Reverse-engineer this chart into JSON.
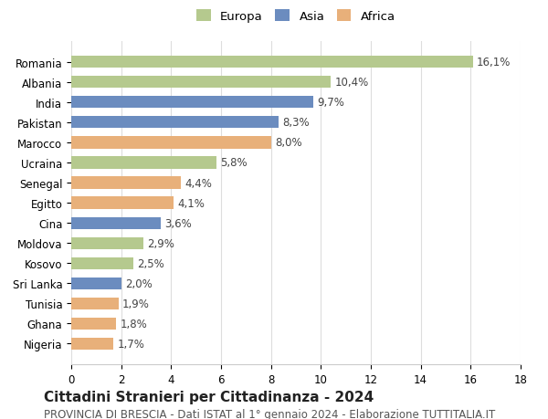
{
  "countries": [
    "Romania",
    "Albania",
    "India",
    "Pakistan",
    "Marocco",
    "Ucraina",
    "Senegal",
    "Egitto",
    "Cina",
    "Moldova",
    "Kosovo",
    "Sri Lanka",
    "Tunisia",
    "Ghana",
    "Nigeria"
  ],
  "values": [
    16.1,
    10.4,
    9.7,
    8.3,
    8.0,
    5.8,
    4.4,
    4.1,
    3.6,
    2.9,
    2.5,
    2.0,
    1.9,
    1.8,
    1.7
  ],
  "labels": [
    "16,1%",
    "10,4%",
    "9,7%",
    "8,3%",
    "8,0%",
    "5,8%",
    "4,4%",
    "4,1%",
    "3,6%",
    "2,9%",
    "2,5%",
    "2,0%",
    "1,9%",
    "1,8%",
    "1,7%"
  ],
  "continents": [
    "Europa",
    "Europa",
    "Asia",
    "Asia",
    "Africa",
    "Europa",
    "Africa",
    "Africa",
    "Asia",
    "Europa",
    "Europa",
    "Asia",
    "Africa",
    "Africa",
    "Africa"
  ],
  "colors": {
    "Europa": "#b5c98e",
    "Asia": "#6b8cbf",
    "Africa": "#e8b07a"
  },
  "legend_order": [
    "Europa",
    "Asia",
    "Africa"
  ],
  "legend_colors": {
    "Europa": "#b5c98e",
    "Asia": "#6b8cbf",
    "Africa": "#e8b07a"
  },
  "title": "Cittadini Stranieri per Cittadinanza - 2024",
  "subtitle": "PROVINCIA DI BRESCIA - Dati ISTAT al 1° gennaio 2024 - Elaborazione TUTTITALIA.IT",
  "xlim": [
    0,
    18
  ],
  "xticks": [
    0,
    2,
    4,
    6,
    8,
    10,
    12,
    14,
    16,
    18
  ],
  "background_color": "#ffffff",
  "grid_color": "#dddddd",
  "bar_height": 0.6,
  "label_fontsize": 8.5,
  "title_fontsize": 11,
  "subtitle_fontsize": 8.5,
  "tick_fontsize": 8.5
}
